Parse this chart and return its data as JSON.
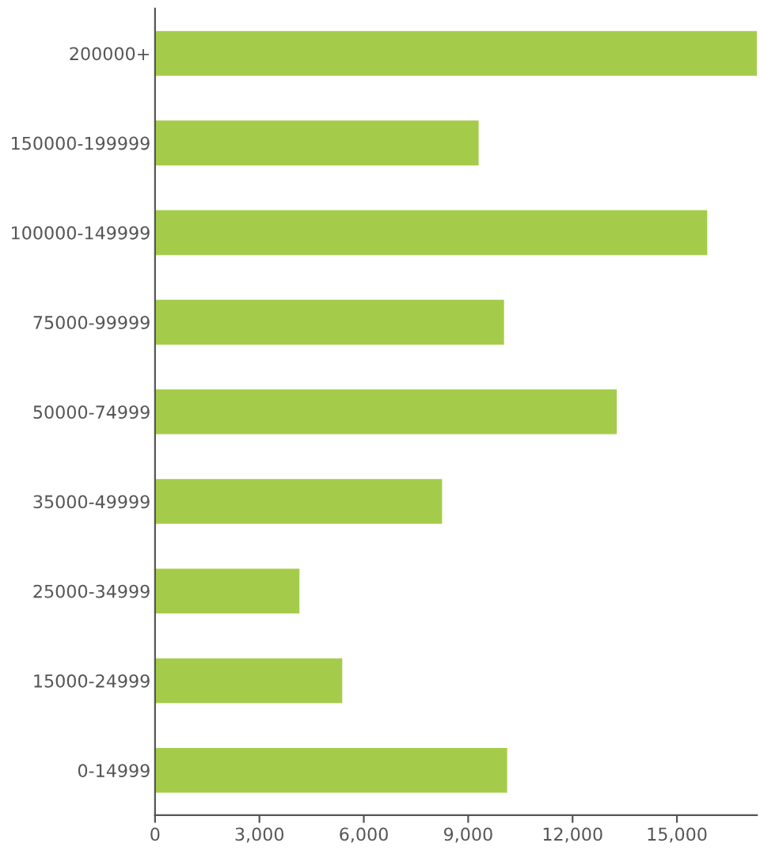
{
  "chart_data": {
    "type": "bar",
    "orientation": "horizontal",
    "categories": [
      "200000+",
      "150000-199999",
      "100000-149999",
      "75000-99999",
      "50000-74999",
      "35000-49999",
      "25000-34999",
      "15000-24999",
      "0-14999"
    ],
    "values": [
      17300,
      9300,
      15870,
      10030,
      13270,
      8250,
      4150,
      5380,
      10120
    ],
    "color": "#a4cc4a",
    "xlim": [
      0,
      17300
    ],
    "xticks": [
      0,
      {
        "value": 3000,
        "label": "3,000"
      },
      {
        "value": 6000,
        "label": "6,000"
      },
      {
        "value": 9000,
        "label": "9,000"
      },
      {
        "value": 12000,
        "label": "12,000"
      },
      {
        "value": 15000,
        "label": "15,000"
      }
    ],
    "grid": false,
    "legend": false
  }
}
